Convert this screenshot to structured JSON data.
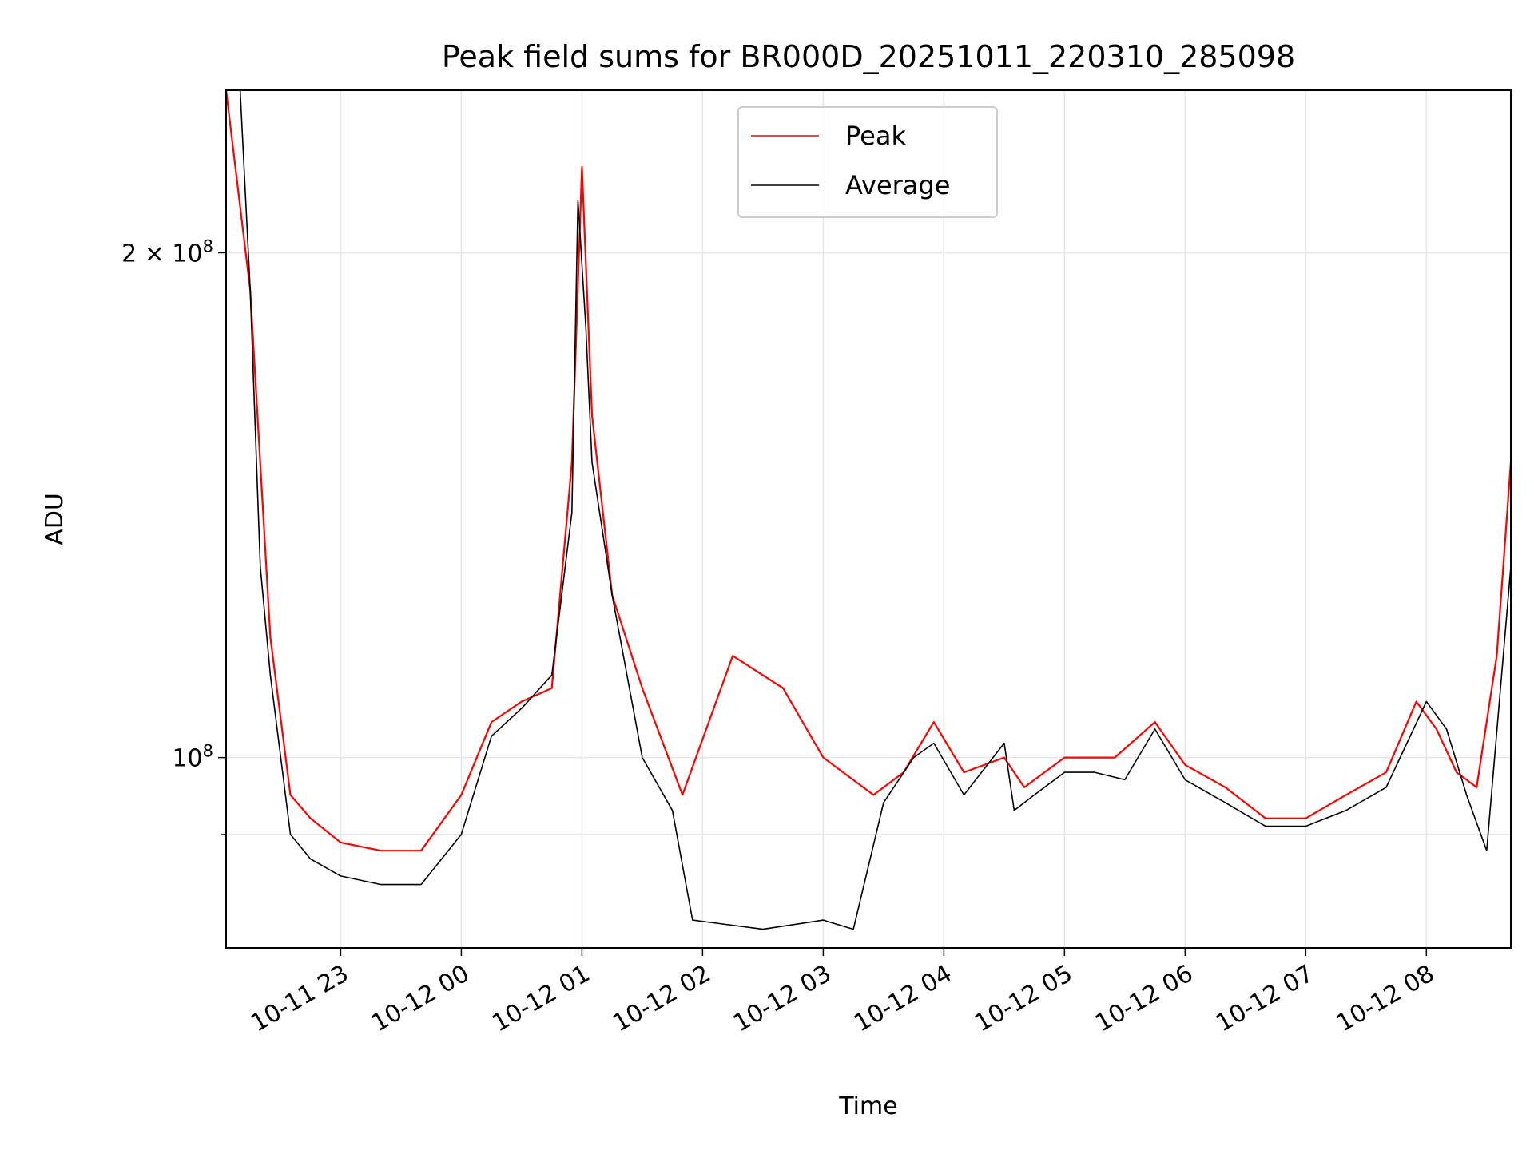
{
  "chart_data": {
    "type": "line",
    "title": "Peak field sums for BR000D_20251011_220310_285098",
    "xlabel": "Time",
    "ylabel": "ADU",
    "yscale": "log",
    "ylim": [
      77000000,
      250000000
    ],
    "xlim": [
      "2025-10-11 22:03",
      "2025-10-12 08:42"
    ],
    "x_ticks": [
      "10-11 23",
      "10-12 00",
      "10-12 01",
      "10-12 02",
      "10-12 03",
      "10-12 04",
      "10-12 05",
      "10-12 06",
      "10-12 07",
      "10-12 08"
    ],
    "y_major_ticks": [
      {
        "value": 200000000,
        "label": "2 × 10",
        "exp": "8"
      },
      {
        "value": 100000000,
        "label": "10",
        "exp": "8"
      }
    ],
    "y_minor_gridlines": [
      90000000
    ],
    "grid": true,
    "legend": {
      "position": "top-center",
      "entries": [
        "Peak",
        "Average"
      ]
    },
    "series": [
      {
        "name": "Peak",
        "color": "#ff0000",
        "x": [
          "2025-10-11 22:03",
          "2025-10-11 22:15",
          "2025-10-11 22:25",
          "2025-10-11 22:35",
          "2025-10-11 22:45",
          "2025-10-11 23:00",
          "2025-10-11 23:20",
          "2025-10-11 23:40",
          "2025-10-12 00:00",
          "2025-10-12 00:15",
          "2025-10-12 00:30",
          "2025-10-12 00:45",
          "2025-10-12 00:55",
          "2025-10-12 01:00",
          "2025-10-12 01:05",
          "2025-10-12 01:15",
          "2025-10-12 01:30",
          "2025-10-12 01:50",
          "2025-10-12 02:15",
          "2025-10-12 02:40",
          "2025-10-12 03:00",
          "2025-10-12 03:25",
          "2025-10-12 03:40",
          "2025-10-12 03:55",
          "2025-10-12 04:10",
          "2025-10-12 04:30",
          "2025-10-12 04:40",
          "2025-10-12 05:00",
          "2025-10-12 05:25",
          "2025-10-12 05:45",
          "2025-10-12 06:00",
          "2025-10-12 06:20",
          "2025-10-12 06:40",
          "2025-10-12 07:00",
          "2025-10-12 07:20",
          "2025-10-12 07:40",
          "2025-10-12 07:55",
          "2025-10-12 08:05",
          "2025-10-12 08:15",
          "2025-10-12 08:25",
          "2025-10-12 08:35",
          "2025-10-12 08:42"
        ],
        "values": [
          250000000,
          190000000,
          118000000,
          95000000,
          92000000,
          89000000,
          88000000,
          88000000,
          95000000,
          105000000,
          108000000,
          110000000,
          150000000,
          225000000,
          160000000,
          125000000,
          110000000,
          95000000,
          115000000,
          110000000,
          100000000,
          95000000,
          98000000,
          105000000,
          98000000,
          100000000,
          96000000,
          100000000,
          100000000,
          105000000,
          99000000,
          96000000,
          92000000,
          92000000,
          95000000,
          98000000,
          108000000,
          104000000,
          98000000,
          96000000,
          115000000,
          150000000
        ]
      },
      {
        "name": "Average",
        "color": "#000000",
        "x": [
          "2025-10-11 22:03",
          "2025-10-11 22:10",
          "2025-10-11 22:15",
          "2025-10-11 22:20",
          "2025-10-11 22:25",
          "2025-10-11 22:35",
          "2025-10-11 22:45",
          "2025-10-11 23:00",
          "2025-10-11 23:20",
          "2025-10-11 23:40",
          "2025-10-12 00:00",
          "2025-10-12 00:15",
          "2025-10-12 00:30",
          "2025-10-12 00:45",
          "2025-10-12 00:55",
          "2025-10-12 00:58",
          "2025-10-12 01:02",
          "2025-10-12 01:05",
          "2025-10-12 01:15",
          "2025-10-12 01:30",
          "2025-10-12 01:45",
          "2025-10-12 01:55",
          "2025-10-12 02:30",
          "2025-10-12 03:00",
          "2025-10-12 03:15",
          "2025-10-12 03:30",
          "2025-10-12 03:45",
          "2025-10-12 03:55",
          "2025-10-12 04:10",
          "2025-10-12 04:30",
          "2025-10-12 04:35",
          "2025-10-12 04:45",
          "2025-10-12 05:00",
          "2025-10-12 05:15",
          "2025-10-12 05:30",
          "2025-10-12 05:45",
          "2025-10-12 06:00",
          "2025-10-12 06:20",
          "2025-10-12 06:40",
          "2025-10-12 07:00",
          "2025-10-12 07:20",
          "2025-10-12 07:40",
          "2025-10-12 08:00",
          "2025-10-12 08:10",
          "2025-10-12 08:20",
          "2025-10-12 08:30",
          "2025-10-12 08:42"
        ],
        "values": [
          250000000,
          250000000,
          190000000,
          130000000,
          112000000,
          90000000,
          87000000,
          85000000,
          84000000,
          84000000,
          90000000,
          103000000,
          107000000,
          112000000,
          140000000,
          215000000,
          180000000,
          150000000,
          125000000,
          100000000,
          93000000,
          80000000,
          79000000,
          80000000,
          79000000,
          94000000,
          100000000,
          102000000,
          95000000,
          102000000,
          93000000,
          95000000,
          98000000,
          98000000,
          97000000,
          104000000,
          97000000,
          94000000,
          91000000,
          91000000,
          93000000,
          96000000,
          108000000,
          104000000,
          95000000,
          88000000,
          130000000
        ]
      }
    ]
  }
}
